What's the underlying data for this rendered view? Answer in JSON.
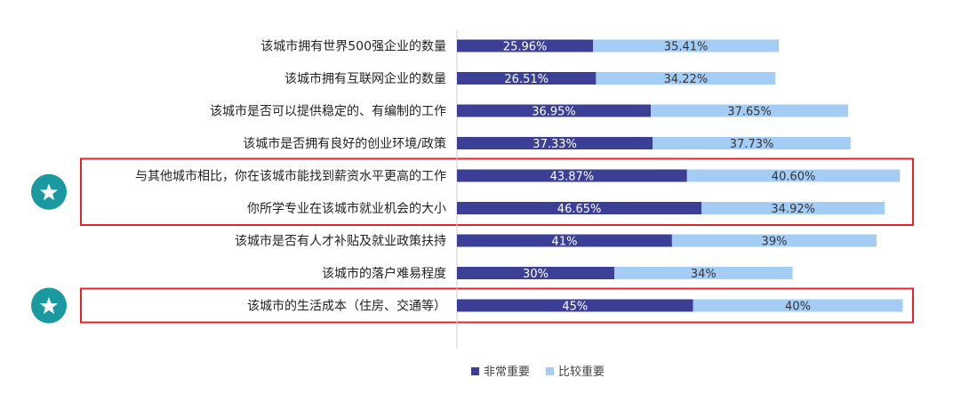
{
  "chart_data": {
    "type": "bar",
    "orientation": "horizontal",
    "stacked": true,
    "categories": [
      "该城市拥有世界500强企业的数量",
      "该城市拥有互联网企业的数量",
      "该城市是否可以提供稳定的、有编制的工作",
      "该城市是否拥有良好的创业环境/政策",
      "与其他城市相比，你在该城市能找到薪资水平更高的工作",
      "你所学专业在该城市就业机会的大小",
      "该城市是否有人才补贴及就业政策扶持",
      "该城市的落户难易程度",
      "该城市的生活成本（住房、交通等）"
    ],
    "series": [
      {
        "name": "非常重要",
        "color": "#3b3f96",
        "values": [
          25.96,
          26.51,
          36.95,
          37.33,
          43.87,
          46.65,
          41,
          30,
          45
        ],
        "labels": [
          "25.96%",
          "26.51%",
          "36.95%",
          "37.33%",
          "43.87%",
          "46.65%",
          "41%",
          "30%",
          "45%"
        ]
      },
      {
        "name": "比较重要",
        "color": "#a3cdf5",
        "values": [
          35.41,
          34.22,
          37.65,
          37.73,
          40.6,
          34.92,
          39,
          34,
          40
        ],
        "labels": [
          "35.41%",
          "34.22%",
          "37.65%",
          "37.73%",
          "40.60%",
          "34.92%",
          "39%",
          "34%",
          "40%"
        ]
      }
    ],
    "xlim": [
      0,
      100
    ],
    "grid": false,
    "legend_position": "bottom",
    "highlight_color": "#e0262d",
    "star_color": "#1a9aa0",
    "highlight_groups": [
      [
        4,
        5
      ],
      [
        8
      ]
    ],
    "title": "",
    "xlabel": "",
    "ylabel": ""
  }
}
